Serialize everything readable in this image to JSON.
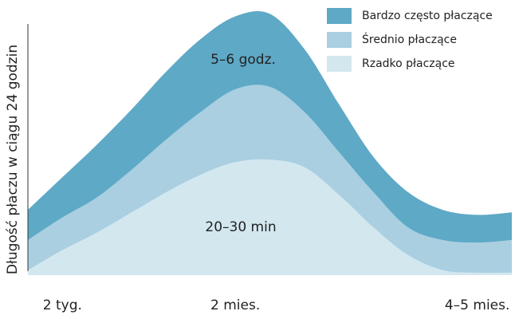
{
  "chart_data": {
    "type": "stacked-area",
    "y_label": "Długość płaczu w ciągu 24 godzin",
    "categories": [
      null,
      "2 tyg.",
      null,
      null,
      null,
      null,
      "2 mies.",
      null,
      null,
      null,
      null,
      null,
      null,
      "4–5 mies.",
      null
    ],
    "ylim": [
      0,
      100
    ],
    "legend": "top-right",
    "series": [
      {
        "name": "Bardzo często płaczące",
        "color": "#5ea9c6",
        "values": [
          12,
          16,
          21,
          24,
          27,
          29,
          29,
          29,
          25,
          19,
          14,
          14,
          12,
          11,
          11
        ]
      },
      {
        "name": "Średnio płaczące",
        "color": "#a9cfe1",
        "values": [
          12,
          13,
          14,
          17,
          21,
          25,
          29,
          29,
          22,
          17,
          14,
          11,
          12,
          12,
          13
        ]
      },
      {
        "name": "Rzadko płaczące",
        "color": "#d3e7ef",
        "values": [
          2,
          10,
          17,
          25,
          33,
          40,
          45,
          46,
          43,
          32,
          19,
          8,
          2,
          1,
          1
        ]
      }
    ],
    "annotations": [
      "5–6 godz.",
      "20–30 min"
    ]
  }
}
